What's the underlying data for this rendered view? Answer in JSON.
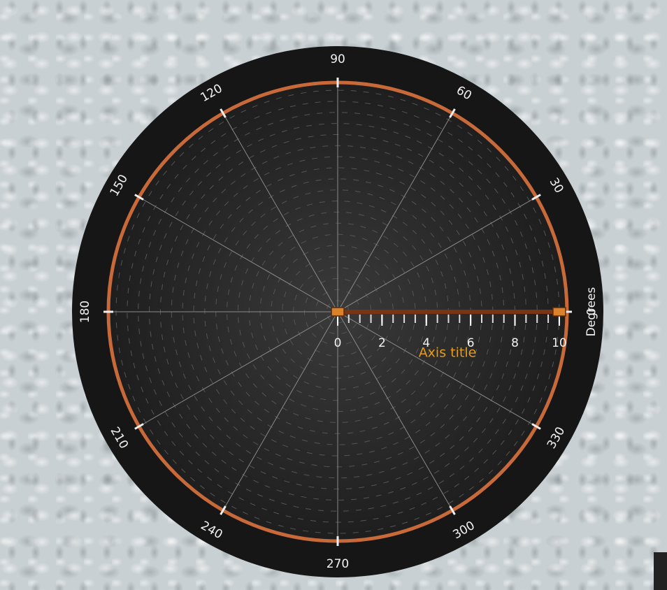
{
  "chart_data": {
    "type": "polar",
    "theta_title": "Degrees",
    "r_title": "Axis title",
    "thetaticks": [
      0,
      30,
      60,
      90,
      120,
      150,
      180,
      210,
      240,
      270,
      300,
      330
    ],
    "rlim": [
      0,
      10.35
    ],
    "rticks": [
      0,
      2,
      4,
      6,
      8,
      10
    ],
    "r_minor_step": 0.5,
    "range": [
      0,
      10
    ],
    "axis_color": "#c8693a",
    "range_color": "#7a3414",
    "handle_color": "#d9822b",
    "title_color": "#e59b1a"
  }
}
